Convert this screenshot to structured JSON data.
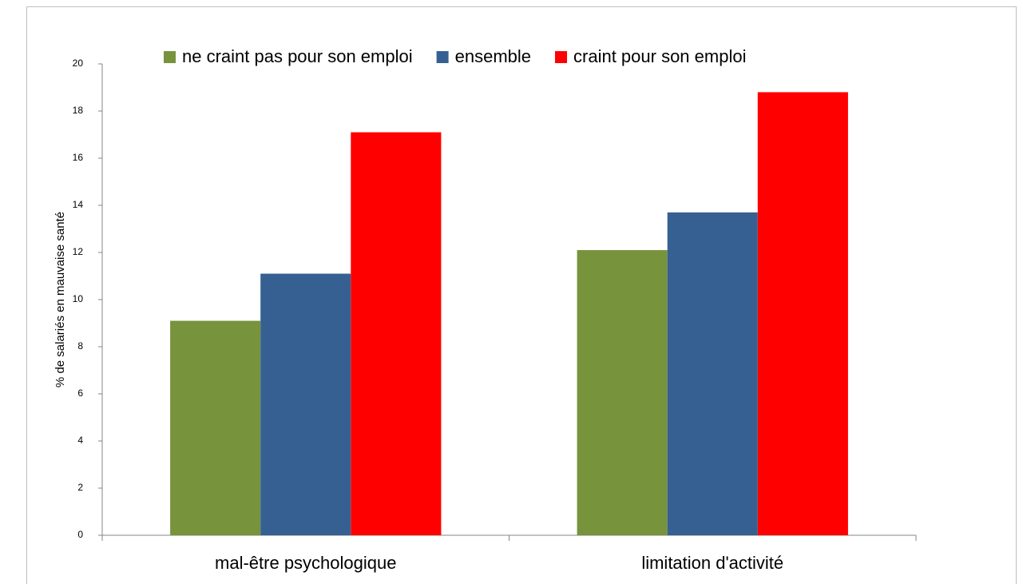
{
  "chart_data": {
    "type": "bar",
    "y_label": "% de salariés en mauvaise santé",
    "categories": [
      "mal-être psychologique",
      "limitation d'activité"
    ],
    "series": [
      {
        "name": "ne craint pas pour son emploi",
        "color": "#77933c",
        "values": [
          9.1,
          12.1
        ]
      },
      {
        "name": "ensemble",
        "color": "#376092",
        "values": [
          11.1,
          13.7
        ]
      },
      {
        "name": "craint pour son emploi",
        "color": "#ff0000",
        "values": [
          17.1,
          18.8
        ]
      }
    ],
    "ylim": [
      0,
      20
    ],
    "yticks": [
      0,
      2,
      4,
      6,
      8,
      10,
      12,
      14,
      16,
      18,
      20
    ],
    "grid": false,
    "legend": "top"
  }
}
